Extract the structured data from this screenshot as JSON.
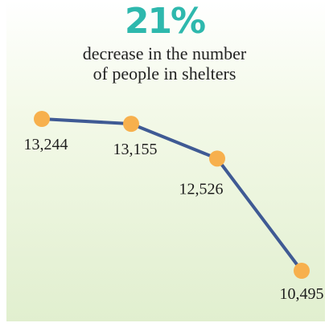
{
  "header": {
    "headline": "21%",
    "subtitle_line1": "decrease in the number",
    "subtitle_line2": "of people in shelters"
  },
  "colors": {
    "headline": "#2eb8ad",
    "line": "#3f5a94",
    "marker": "#f7b04d",
    "background_bottom": "#e1efcf"
  },
  "chart_data": {
    "type": "line",
    "title": "21%",
    "subtitle": "decrease in the number of people in shelters",
    "series": [
      {
        "values": [
          13244,
          13155,
          12526,
          10495
        ]
      }
    ],
    "data_labels": [
      "13,244",
      "13,155",
      "12,526",
      "10,495"
    ],
    "ylim": [
      10495,
      13244
    ],
    "grid": false,
    "legend": "none"
  }
}
